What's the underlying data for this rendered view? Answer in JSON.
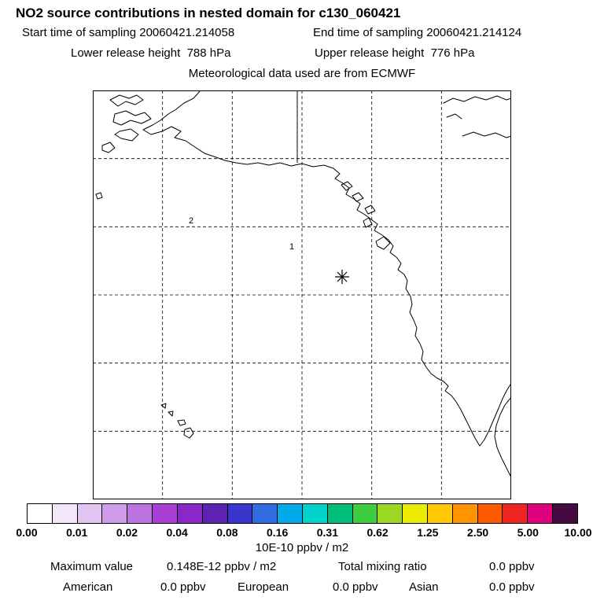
{
  "header": {
    "title": "NO2 source contributions in nested domain for c130_060421",
    "start_time": "Start time of sampling 20060421.214058",
    "end_time": "End time of sampling 20060421.214124",
    "lower_release": "Lower release height  788 hPa",
    "upper_release": "Upper release height  776 hPa",
    "met_data": "Meteorological data used are from ECMWF"
  },
  "map": {
    "labels": [
      "2",
      "1"
    ],
    "marker": "release-location-asterisk"
  },
  "colorbar": {
    "colors": [
      "#ffffff",
      "#f3e6fa",
      "#e2c4f2",
      "#cf9dea",
      "#bc72e0",
      "#a93ed4",
      "#8a27c6",
      "#5c22b2",
      "#3a36cc",
      "#2f6de0",
      "#00a9e8",
      "#00d3cc",
      "#00bd79",
      "#3ecc3e",
      "#9ad823",
      "#ecec00",
      "#ffc800",
      "#ff9400",
      "#ff5a00",
      "#f12424",
      "#e0007e",
      "#460a42"
    ],
    "tick_labels": [
      "0.00",
      "0.01",
      "0.02",
      "0.04",
      "0.08",
      "0.16",
      "0.31",
      "0.62",
      "1.25",
      "2.50",
      "5.00",
      "10.00"
    ],
    "units": "10E-10 ppbv / m2"
  },
  "stats": {
    "maximum_label": "Maximum value",
    "maximum_value": "0.148E-12 ppbv / m2",
    "total_mixing_label": "Total mixing ratio",
    "total_mixing_value": "0.0 ppbv",
    "regions": [
      {
        "name": "American",
        "value": "0.0 ppbv"
      },
      {
        "name": "European",
        "value": "0.0 ppbv"
      },
      {
        "name": "Asian",
        "value": "0.0 ppbv"
      }
    ]
  },
  "chart_data": {
    "type": "heatmap",
    "title": "NO2 source contributions in nested domain for c130_060421",
    "start_time": "20060421.214058",
    "end_time": "20060421.214124",
    "lower_release_height_hPa": 788,
    "upper_release_height_hPa": 776,
    "met_data_source": "ECMWF",
    "colorbar_scale": [
      0.0,
      0.01,
      0.02,
      0.04,
      0.08,
      0.16,
      0.31,
      0.62,
      1.25,
      2.5,
      5.0,
      10.0
    ],
    "units": "10E-10 ppbv / m2",
    "maximum_value": "0.148E-12 ppbv / m2",
    "total_mixing_ratio_ppbv": 0.0,
    "contributions_ppbv": {
      "American": 0.0,
      "European": 0.0,
      "Asian": 0.0
    },
    "legend_position": "bottom colorbar",
    "grid": "dashed lat/lon grid, 6x6 cells",
    "notes": "No nonzero contribution cells shaded on map; release location marked with asterisk off the North American west coast; nested domain labels 1 and 2 shown"
  }
}
